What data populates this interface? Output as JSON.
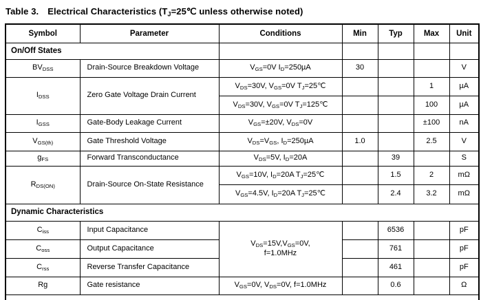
{
  "title": {
    "prefix": "Table 3.",
    "text": "Electrical Characteristics (T_{J}=25℃  unless otherwise noted)"
  },
  "table": {
    "headers": {
      "symbol": "Symbol",
      "parameter": "Parameter",
      "conditions": "Conditions",
      "min": "Min",
      "typ": "Typ",
      "max": "Max",
      "unit": "Unit"
    },
    "sections": {
      "on_off": "On/Off States",
      "dynamic": "Dynamic Characteristics"
    },
    "rows": {
      "bvdss": {
        "symbol": "BV_{DSS}",
        "parameter": "Drain-Source Breakdown Voltage",
        "conditions": "V_{GS}=0V I_{D}=250µA",
        "min": "30",
        "unit": "V"
      },
      "idss": {
        "symbol": "I_{DSS}",
        "parameter": "Zero Gate Voltage Drain Current",
        "sub": [
          {
            "conditions": "V_{DS}=30V, V_{GS}=0V T_{J}=25℃",
            "max": "1",
            "unit": "µA"
          },
          {
            "conditions": "V_{DS}=30V, V_{GS}=0V T_{J}=125℃",
            "max": "100",
            "unit": "µA"
          }
        ]
      },
      "igss": {
        "symbol": "I_{GSS}",
        "parameter": "Gate-Body Leakage Current",
        "conditions": "V_{GS}=±20V, V_{DS}=0V",
        "max": "±100",
        "unit": "nA"
      },
      "vgsth": {
        "symbol": "V_{GS(th)}",
        "parameter": "Gate Threshold Voltage",
        "conditions": "V_{DS}=V_{GS}, I_{D}=250µA",
        "min": "1.0",
        "max": "2.5",
        "unit": "V"
      },
      "gfs": {
        "symbol": "g_{FS}",
        "parameter": "Forward Transconductance",
        "conditions": "V_{DS}=5V, I_{D}=20A",
        "typ": "39",
        "unit": "S"
      },
      "rdson": {
        "symbol": "R_{DS(ON)}",
        "parameter": "Drain-Source On-State Resistance",
        "sub": [
          {
            "conditions": "V_{GS}=10V, I_{D}=20A T_{J}=25℃",
            "typ": "1.5",
            "max": "2",
            "unit": "mΩ"
          },
          {
            "conditions": "V_{GS}=4.5V, I_{D}=20A T_{J}=25℃",
            "typ": "2.4",
            "max": "3.2",
            "unit": "mΩ"
          }
        ]
      },
      "cap_shared_conditions": "V_{DS}=15V,V_{GS}=0V,\nf=1.0MHz",
      "ciss": {
        "symbol": "C_{iss}",
        "parameter": "Input Capacitance",
        "typ": "6536",
        "unit": "pF"
      },
      "coss": {
        "symbol": "C_{oss}",
        "parameter": "Output Capacitance",
        "typ": "761",
        "unit": "pF"
      },
      "crss": {
        "symbol": "C_{rss}",
        "parameter": "Reverse Transfer Capacitance",
        "typ": "461",
        "unit": "pF"
      },
      "rg": {
        "symbol": "Rg",
        "parameter": "Gate resistance",
        "conditions": "V_{GS}=0V, V_{DS}=0V, f=1.0MHz",
        "typ": "0.6",
        "unit": "Ω"
      }
    }
  }
}
